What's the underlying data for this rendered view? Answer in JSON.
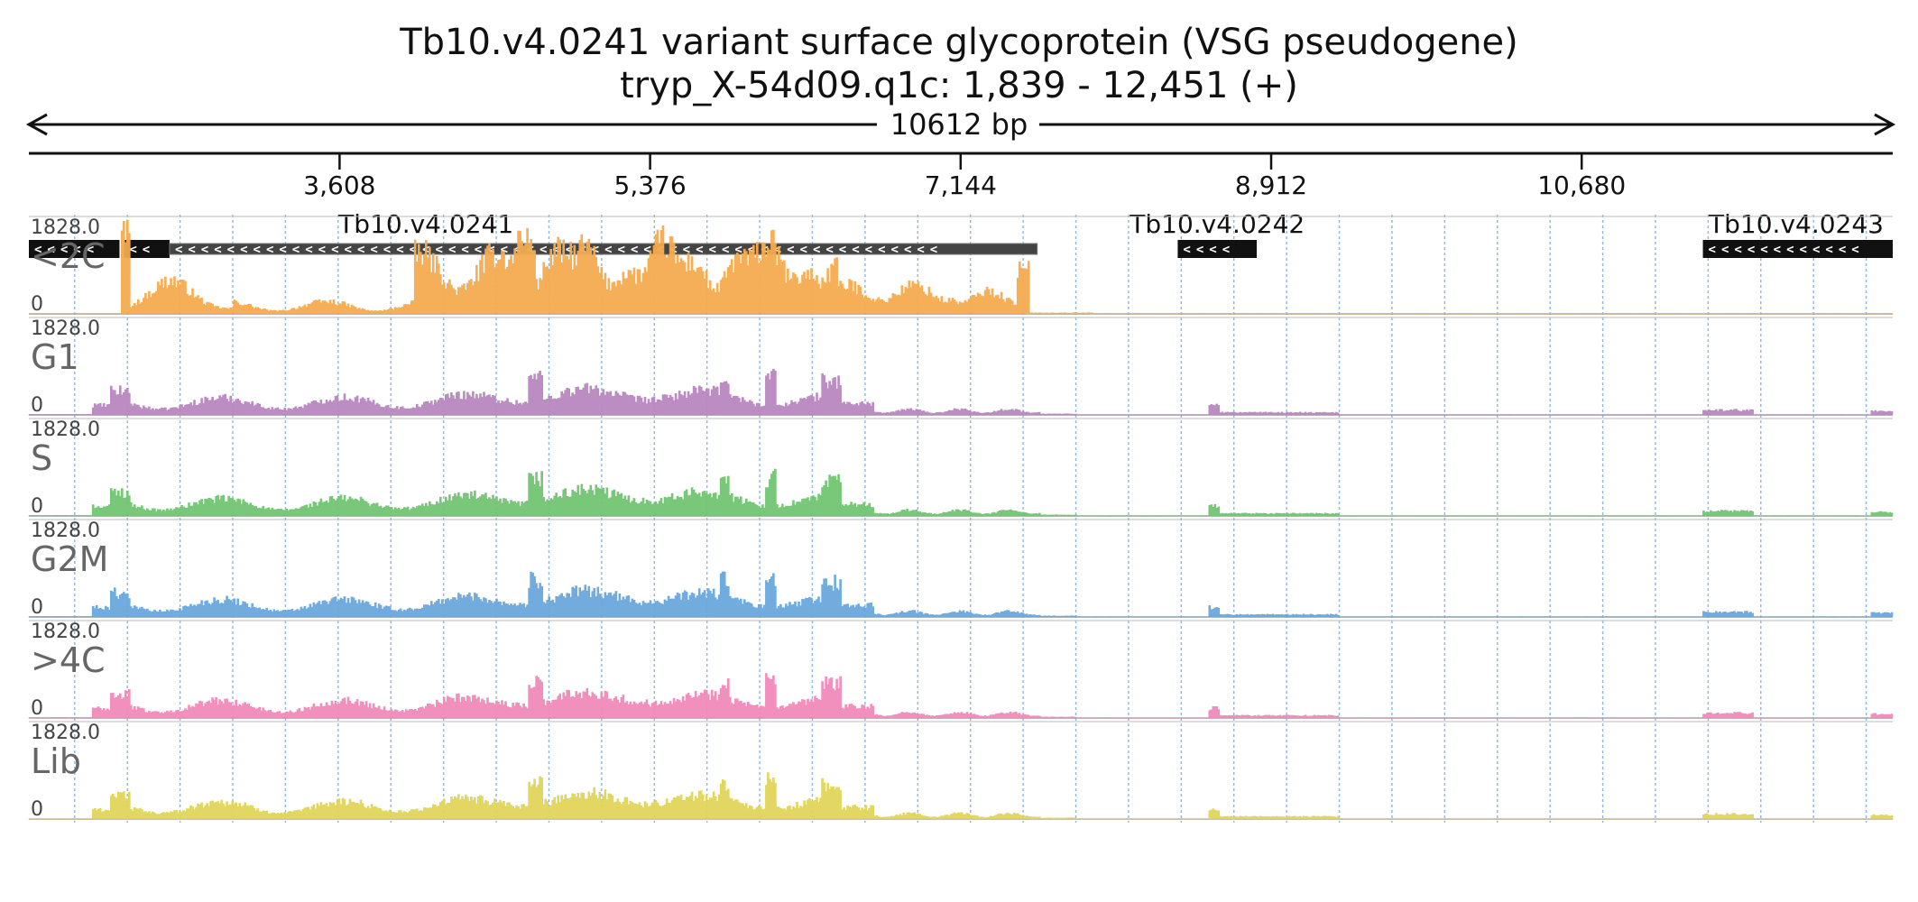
{
  "title": {
    "line1": "Tb10.v4.0241  variant surface glycoprotein (VSG  pseudogene)",
    "line2": "tryp_X-54d09.q1c: 1,839 - 12,451 (+)"
  },
  "chart_data": {
    "type": "area",
    "region": {
      "chrom": "tryp_X-54d09.q1c",
      "start": 1839,
      "end": 12451,
      "strand": "+"
    },
    "span_label": "10612 bp",
    "axis": {
      "ticks": [
        3608,
        5376,
        7144,
        8912,
        10680
      ],
      "tick_labels": [
        "3,608",
        "5,376",
        "7,144",
        "8,912",
        "10,680"
      ],
      "grid": true,
      "grid_step_bp": 300
    },
    "genes": [
      {
        "name": "Tb10.v4.0241",
        "strand": "-",
        "label_shown": true,
        "blocks": [
          {
            "start": 1839,
            "end": 2355,
            "style": "solid"
          },
          {
            "start": 2380,
            "end": 2640,
            "style": "solid"
          },
          {
            "start": 2640,
            "end": 7580,
            "style": "pseudo"
          }
        ]
      },
      {
        "name": "Tb10.v4.0242",
        "strand": "-",
        "label_shown": true,
        "blocks": [
          {
            "start": 8380,
            "end": 8830,
            "style": "solid"
          }
        ]
      },
      {
        "name": "Tb10.v4.0243",
        "strand": "-",
        "label_shown": true,
        "blocks": [
          {
            "start": 11370,
            "end": 12451,
            "style": "solid"
          }
        ]
      }
    ],
    "tracks": [
      {
        "name": "<2C",
        "color": "#f5ab50",
        "max": "1828.0",
        "zero": "0",
        "profile": "c2c"
      },
      {
        "name": "G1",
        "color": "#b887bf",
        "max": "1828.0",
        "zero": "0",
        "profile": "cycle"
      },
      {
        "name": "S",
        "color": "#72c472",
        "max": "1828.0",
        "zero": "0",
        "profile": "cycle"
      },
      {
        "name": "G2M",
        "color": "#6aa8dc",
        "max": "1828.0",
        "zero": "0",
        "profile": "cycle"
      },
      {
        "name": ">4C",
        "color": "#f08ab8",
        "max": "1828.0",
        "zero": "0",
        "profile": "cycle"
      },
      {
        "name": "Lib",
        "color": "#dfd55a",
        "max": "1828.0",
        "zero": "0",
        "profile": "cycle"
      }
    ]
  }
}
